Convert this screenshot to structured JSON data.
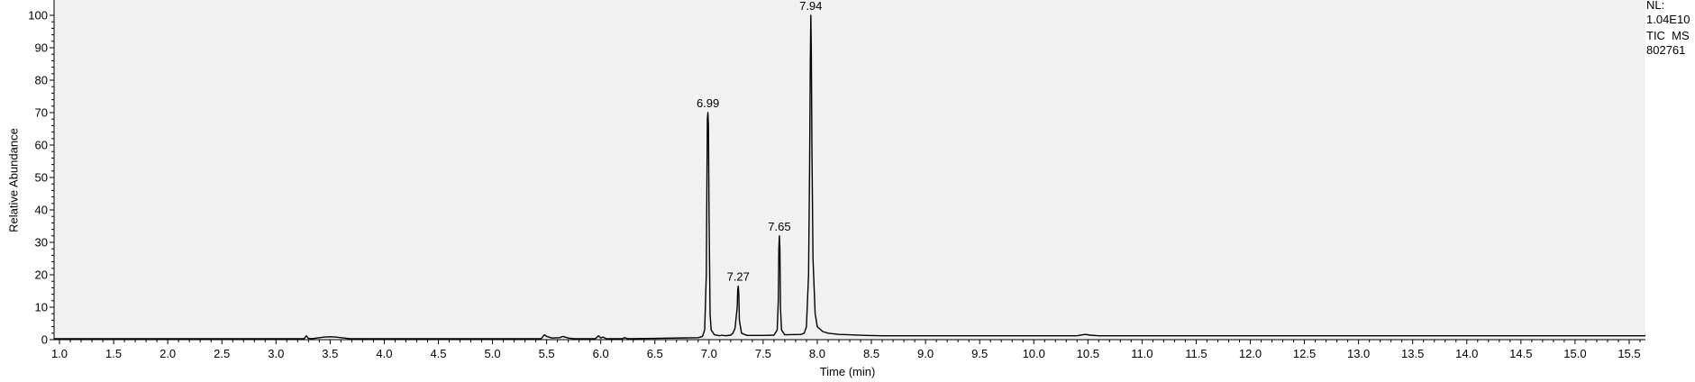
{
  "chart_data": {
    "type": "line",
    "title": "",
    "xlabel": "Time (min)",
    "ylabel": "Relative Abundance",
    "xlim": [
      0.95,
      15.65
    ],
    "ylim": [
      0,
      100
    ],
    "x_ticks": [
      "1.0",
      "1.5",
      "2.0",
      "2.5",
      "3.0",
      "3.5",
      "4.0",
      "4.5",
      "5.0",
      "5.5",
      "6.0",
      "6.5",
      "7.0",
      "7.5",
      "8.0",
      "8.5",
      "9.0",
      "9.5",
      "10.0",
      "10.5",
      "11.0",
      "11.5",
      "12.0",
      "12.5",
      "13.0",
      "13.5",
      "14.0",
      "14.5",
      "15.0",
      "15.5"
    ],
    "y_ticks": [
      "0",
      "10",
      "20",
      "30",
      "40",
      "50",
      "60",
      "70",
      "80",
      "90",
      "100"
    ],
    "grid": false,
    "series": [
      {
        "x": [
          0.95,
          3.26,
          3.28,
          3.3,
          3.33,
          3.45,
          3.5,
          3.55,
          3.6,
          3.68,
          5.45,
          5.48,
          5.5,
          5.52,
          5.55,
          5.62,
          5.65,
          5.7,
          5.75,
          5.95,
          5.98,
          6.0,
          6.02,
          6.05,
          6.2,
          6.22,
          6.25,
          6.5,
          6.9,
          6.94,
          6.96,
          6.975,
          6.98,
          6.985,
          6.99,
          6.995,
          7.0,
          7.01,
          7.02,
          7.05,
          7.1,
          7.12,
          7.15,
          7.2,
          7.22,
          7.24,
          7.26,
          7.265,
          7.27,
          7.275,
          7.28,
          7.3,
          7.35,
          7.5,
          7.6,
          7.63,
          7.64,
          7.645,
          7.65,
          7.655,
          7.66,
          7.67,
          7.7,
          7.85,
          7.88,
          7.9,
          7.92,
          7.93,
          7.935,
          7.94,
          7.945,
          7.95,
          7.96,
          7.98,
          8.0,
          8.05,
          8.1,
          8.2,
          8.3,
          8.45,
          8.6,
          10.4,
          10.45,
          10.48,
          10.52,
          10.6,
          15.65
        ],
        "y": [
          0.3,
          0.3,
          1.2,
          0.4,
          0.3,
          0.8,
          0.9,
          0.8,
          0.6,
          0.3,
          0.3,
          1.5,
          1.0,
          0.8,
          0.5,
          0.6,
          1.0,
          0.5,
          0.3,
          0.3,
          1.2,
          0.5,
          0.8,
          0.3,
          0.3,
          0.6,
          0.3,
          0.4,
          0.6,
          1.0,
          3.0,
          20.0,
          45.0,
          68.0,
          70.0,
          66.0,
          40.0,
          8.0,
          3.0,
          1.5,
          1.2,
          1.4,
          1.2,
          1.4,
          2.0,
          3.5,
          10.0,
          15.5,
          16.5,
          14.0,
          6.0,
          2.0,
          1.3,
          1.3,
          1.4,
          3.0,
          12.0,
          28.0,
          32.0,
          28.0,
          10.0,
          3.0,
          1.5,
          1.6,
          2.0,
          4.0,
          20.0,
          55.0,
          85.0,
          100.0,
          88.0,
          60.0,
          25.0,
          8.0,
          4.0,
          2.5,
          2.0,
          1.6,
          1.5,
          1.3,
          1.2,
          1.2,
          1.5,
          1.6,
          1.4,
          1.2,
          1.2
        ]
      }
    ],
    "peak_labels": [
      {
        "x": 6.99,
        "y": 70,
        "text": "6.99"
      },
      {
        "x": 7.27,
        "y": 16.5,
        "text": "7.27"
      },
      {
        "x": 7.65,
        "y": 32,
        "text": "7.65"
      },
      {
        "x": 7.94,
        "y": 100,
        "text": "7.94"
      }
    ]
  },
  "info": {
    "line1": "NL:",
    "line2": "1.04E10",
    "line3": "TIC  MS",
    "line4": "802761"
  }
}
